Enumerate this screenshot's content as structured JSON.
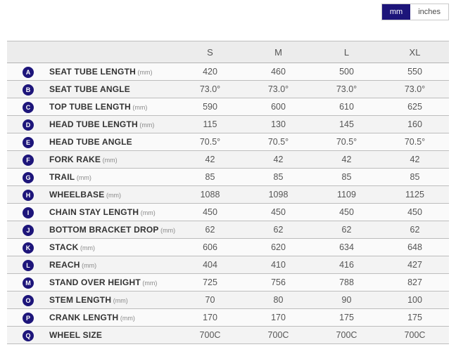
{
  "unit_toggle": {
    "mm_label": "mm",
    "inches_label": "inches",
    "selected": "mm"
  },
  "colors": {
    "accent_navy": "#1d157a",
    "header_bg": "#ececec",
    "row_bg": "#fafafa",
    "row_alt_bg": "#f3f3f3",
    "border": "#bdbdbd"
  },
  "table": {
    "size_headers": [
      "S",
      "M",
      "L",
      "XL"
    ],
    "rows": [
      {
        "letter": "A",
        "label": "SEAT TUBE LENGTH",
        "unit": "(mm)",
        "values": [
          "420",
          "460",
          "500",
          "550"
        ]
      },
      {
        "letter": "B",
        "label": "SEAT TUBE ANGLE",
        "unit": "",
        "values": [
          "73.0°",
          "73.0°",
          "73.0°",
          "73.0°"
        ]
      },
      {
        "letter": "C",
        "label": "TOP TUBE LENGTH",
        "unit": "(mm)",
        "values": [
          "590",
          "600",
          "610",
          "625"
        ]
      },
      {
        "letter": "D",
        "label": "HEAD TUBE LENGTH",
        "unit": "(mm)",
        "values": [
          "115",
          "130",
          "145",
          "160"
        ]
      },
      {
        "letter": "E",
        "label": "HEAD TUBE ANGLE",
        "unit": "",
        "values": [
          "70.5°",
          "70.5°",
          "70.5°",
          "70.5°"
        ]
      },
      {
        "letter": "F",
        "label": "FORK RAKE",
        "unit": "(mm)",
        "values": [
          "42",
          "42",
          "42",
          "42"
        ]
      },
      {
        "letter": "G",
        "label": "TRAIL",
        "unit": "(mm)",
        "values": [
          "85",
          "85",
          "85",
          "85"
        ]
      },
      {
        "letter": "H",
        "label": "WHEELBASE",
        "unit": "(mm)",
        "values": [
          "1088",
          "1098",
          "1109",
          "1125"
        ]
      },
      {
        "letter": "I",
        "label": "CHAIN STAY LENGTH",
        "unit": "(mm)",
        "values": [
          "450",
          "450",
          "450",
          "450"
        ]
      },
      {
        "letter": "J",
        "label": "BOTTOM BRACKET DROP",
        "unit": "(mm)",
        "values": [
          "62",
          "62",
          "62",
          "62"
        ]
      },
      {
        "letter": "K",
        "label": "STACK",
        "unit": "(mm)",
        "values": [
          "606",
          "620",
          "634",
          "648"
        ]
      },
      {
        "letter": "L",
        "label": "REACH",
        "unit": "(mm)",
        "values": [
          "404",
          "410",
          "416",
          "427"
        ]
      },
      {
        "letter": "M",
        "label": "STAND OVER HEIGHT",
        "unit": "(mm)",
        "values": [
          "725",
          "756",
          "788",
          "827"
        ]
      },
      {
        "letter": "O",
        "label": "STEM LENGTH",
        "unit": "(mm)",
        "values": [
          "70",
          "80",
          "90",
          "100"
        ]
      },
      {
        "letter": "P",
        "label": "CRANK LENGTH",
        "unit": "(mm)",
        "values": [
          "170",
          "170",
          "175",
          "175"
        ]
      },
      {
        "letter": "Q",
        "label": "WHEEL SIZE",
        "unit": "",
        "values": [
          "700C",
          "700C",
          "700C",
          "700C"
        ]
      }
    ]
  }
}
